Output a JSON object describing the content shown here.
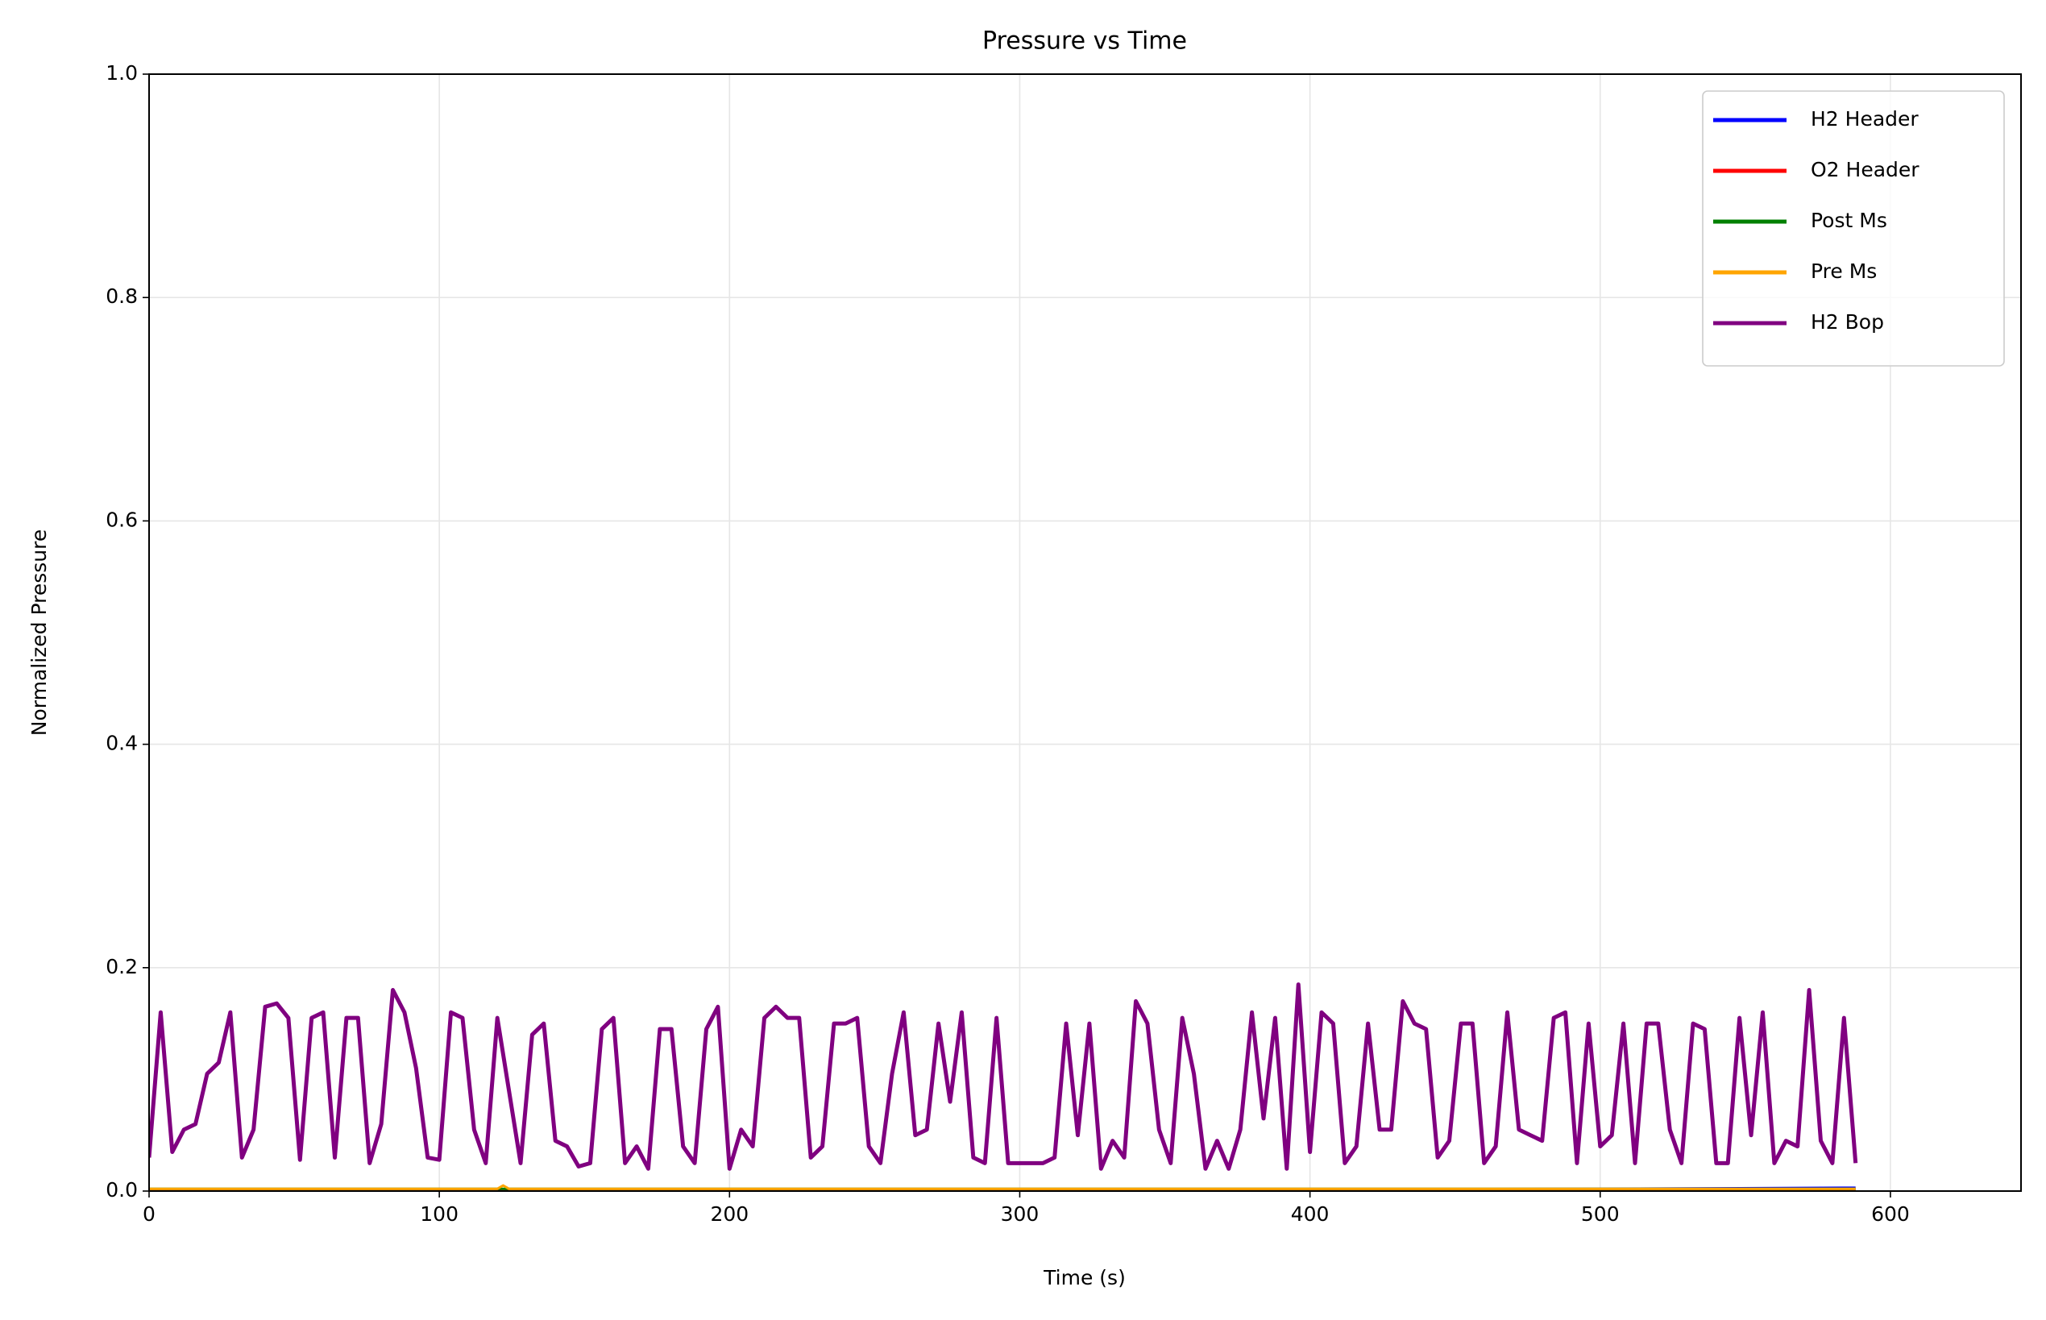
{
  "chart_data": {
    "type": "line",
    "title": "Pressure vs Time",
    "xlabel": "Time (s)",
    "ylabel": "Normalized Pressure",
    "xlim": [
      0,
      645
    ],
    "ylim": [
      0,
      1
    ],
    "xticks": [
      0,
      100,
      200,
      300,
      400,
      500,
      600
    ],
    "yticks": [
      {
        "value": 0,
        "label": "0.0"
      },
      0.2,
      0.4,
      0.6,
      0.8,
      {
        "value": 1,
        "label": "1.0"
      }
    ],
    "grid": true,
    "legend": "upper right",
    "series": [
      {
        "name": "H2 Header",
        "color": "#0000ff",
        "x": [
          0,
          300,
          500,
          588
        ],
        "values": [
          0.001,
          0.001,
          0.002,
          0.003
        ]
      },
      {
        "name": "O2 Header",
        "color": "#ff0000",
        "x": [
          0,
          588
        ],
        "values": [
          0.001,
          0.001
        ]
      },
      {
        "name": "Post Ms",
        "color": "#008000",
        "x": [
          0,
          588
        ],
        "values": [
          0.002,
          0.002
        ]
      },
      {
        "name": "Pre Ms",
        "color": "#ffa500",
        "x": [
          0,
          120,
          122,
          124,
          588
        ],
        "values": [
          0.002,
          0.002,
          0.005,
          0.002,
          0.002
        ]
      },
      {
        "name": "H2 Bop",
        "color": "#800080",
        "x": [
          0,
          4,
          8,
          12,
          16,
          20,
          24,
          28,
          32,
          36,
          40,
          44,
          48,
          52,
          56,
          60,
          64,
          68,
          72,
          76,
          80,
          84,
          88,
          92,
          96,
          100,
          104,
          108,
          112,
          116,
          120,
          124,
          128,
          132,
          136,
          140,
          144,
          148,
          152,
          156,
          160,
          164,
          168,
          172,
          176,
          180,
          184,
          188,
          192,
          196,
          200,
          204,
          208,
          212,
          216,
          220,
          224,
          228,
          232,
          236,
          240,
          244,
          248,
          252,
          256,
          260,
          264,
          268,
          272,
          276,
          280,
          284,
          288,
          292,
          296,
          300,
          304,
          308,
          312,
          316,
          320,
          324,
          328,
          332,
          336,
          340,
          344,
          348,
          352,
          356,
          360,
          364,
          368,
          372,
          376,
          380,
          384,
          388,
          392,
          396,
          400,
          404,
          408,
          412,
          416,
          420,
          424,
          428,
          432,
          436,
          440,
          444,
          448,
          452,
          456,
          460,
          464,
          468,
          472,
          476,
          480,
          484,
          488,
          492,
          496,
          500,
          504,
          508,
          512,
          516,
          520,
          524,
          528,
          532,
          536,
          540,
          544,
          548,
          552,
          556,
          560,
          564,
          568,
          572,
          576,
          580,
          584,
          588
        ],
        "values": [
          0.03,
          0.16,
          0.035,
          0.055,
          0.06,
          0.105,
          0.115,
          0.16,
          0.03,
          0.055,
          0.165,
          0.168,
          0.155,
          0.028,
          0.155,
          0.16,
          0.03,
          0.155,
          0.155,
          0.025,
          0.06,
          0.18,
          0.16,
          0.11,
          0.03,
          0.028,
          0.16,
          0.155,
          0.055,
          0.025,
          0.155,
          0.09,
          0.025,
          0.14,
          0.15,
          0.045,
          0.04,
          0.022,
          0.025,
          0.145,
          0.155,
          0.025,
          0.04,
          0.02,
          0.145,
          0.145,
          0.04,
          0.025,
          0.145,
          0.165,
          0.02,
          0.055,
          0.04,
          0.155,
          0.165,
          0.155,
          0.155,
          0.03,
          0.04,
          0.15,
          0.15,
          0.155,
          0.04,
          0.025,
          0.105,
          0.16,
          0.05,
          0.055,
          0.15,
          0.08,
          0.16,
          0.03,
          0.025,
          0.155,
          0.025,
          0.025,
          0.025,
          0.025,
          0.03,
          0.15,
          0.05,
          0.15,
          0.02,
          0.045,
          0.03,
          0.17,
          0.15,
          0.055,
          0.025,
          0.155,
          0.105,
          0.02,
          0.045,
          0.02,
          0.055,
          0.16,
          0.065,
          0.155,
          0.02,
          0.185,
          0.035,
          0.16,
          0.15,
          0.025,
          0.04,
          0.15,
          0.055,
          0.055,
          0.17,
          0.15,
          0.145,
          0.03,
          0.045,
          0.15,
          0.15,
          0.025,
          0.04,
          0.16,
          0.055,
          0.05,
          0.045,
          0.155,
          0.16,
          0.025,
          0.15,
          0.04,
          0.05,
          0.15,
          0.025,
          0.15,
          0.15,
          0.055,
          0.025,
          0.15,
          0.145,
          0.025,
          0.025,
          0.155,
          0.05,
          0.16,
          0.025,
          0.045,
          0.04,
          0.18,
          0.045,
          0.025,
          0.155,
          0.025
        ]
      }
    ]
  }
}
